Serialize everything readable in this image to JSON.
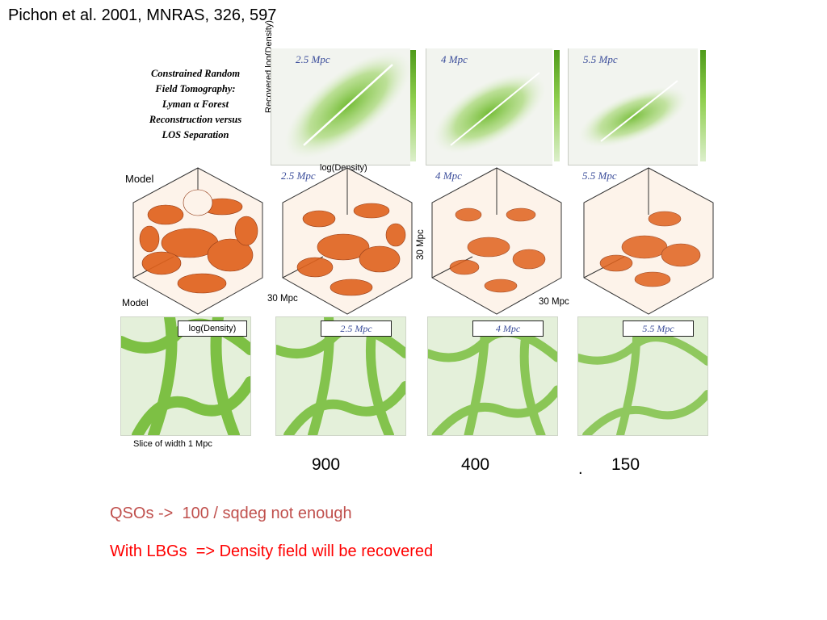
{
  "citation": "Pichon et al. 2001, MNRAS, 326, 597",
  "caption_lines": [
    "Constrained Random",
    "Field Tomography:",
    "Lyman α Forest",
    "Reconstruction versus",
    "LOS Separation"
  ],
  "scatter_row": {
    "ylabel": "Recovered log(Density)",
    "xlabel": "log(Density)",
    "panels": [
      "2.5 Mpc",
      "4 Mpc",
      "5.5 Mpc"
    ]
  },
  "cube_row": {
    "model_label": "Model",
    "panels": [
      "2.5 Mpc",
      "4 Mpc",
      "5.5 Mpc"
    ],
    "dim_label_1": "30 Mpc",
    "dim_label_2": "30 Mpc",
    "dim_label_3": "30 Mpc"
  },
  "slice_row": {
    "model_label": "Model",
    "model_tag": "log(Density)",
    "panels": [
      "2.5 Mpc",
      "4 Mpc",
      "5.5 Mpc"
    ],
    "caption": "Slice of width 1 Mpc"
  },
  "colors": {
    "green": "#6cb82b",
    "orange": "#e0621d",
    "note1": "#c0504d",
    "note2": "#ff0000"
  },
  "resolutions": [
    "900",
    "400",
    "150"
  ],
  "dot": ".",
  "notes": [
    "QSOs ->  100 / sqdeg not enough",
    "With LBGs  => Density field will be recovered"
  ]
}
